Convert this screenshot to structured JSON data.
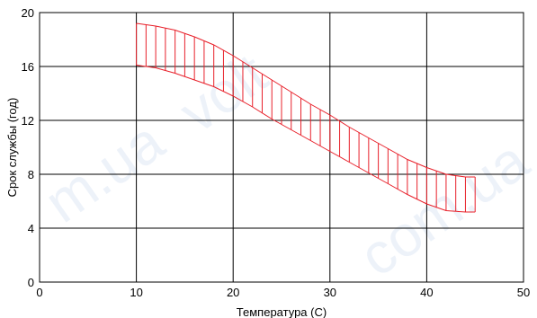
{
  "chart_data": {
    "type": "area",
    "title": "",
    "xlabel": "Температура (С)",
    "ylabel": "Срок службы  (год)",
    "xlim": [
      0,
      50
    ],
    "ylim": [
      0,
      20
    ],
    "x_ticks": [
      "0",
      "10",
      "20",
      "30",
      "40",
      "50"
    ],
    "y_ticks": [
      "0",
      "4",
      "8",
      "12",
      "16",
      "20"
    ],
    "grid": true,
    "band_color": "#e8202a",
    "upper": {
      "x": [
        10,
        12,
        14,
        16,
        18,
        20,
        22,
        24,
        26,
        28,
        30,
        32,
        34,
        36,
        38,
        40,
        42,
        44,
        45
      ],
      "y": [
        19.2,
        19.0,
        18.7,
        18.2,
        17.6,
        16.8,
        15.9,
        15.0,
        14.1,
        13.2,
        12.4,
        11.5,
        10.7,
        9.9,
        9.1,
        8.5,
        8.0,
        7.8,
        7.8
      ]
    },
    "lower": {
      "x": [
        10,
        12,
        14,
        16,
        18,
        20,
        22,
        24,
        26,
        28,
        30,
        32,
        34,
        36,
        38,
        40,
        42,
        44,
        45
      ],
      "y": [
        16.1,
        15.9,
        15.5,
        15.0,
        14.5,
        13.8,
        13.0,
        12.1,
        11.3,
        10.5,
        9.7,
        8.9,
        8.1,
        7.3,
        6.5,
        5.8,
        5.3,
        5.2,
        5.2
      ]
    }
  }
}
